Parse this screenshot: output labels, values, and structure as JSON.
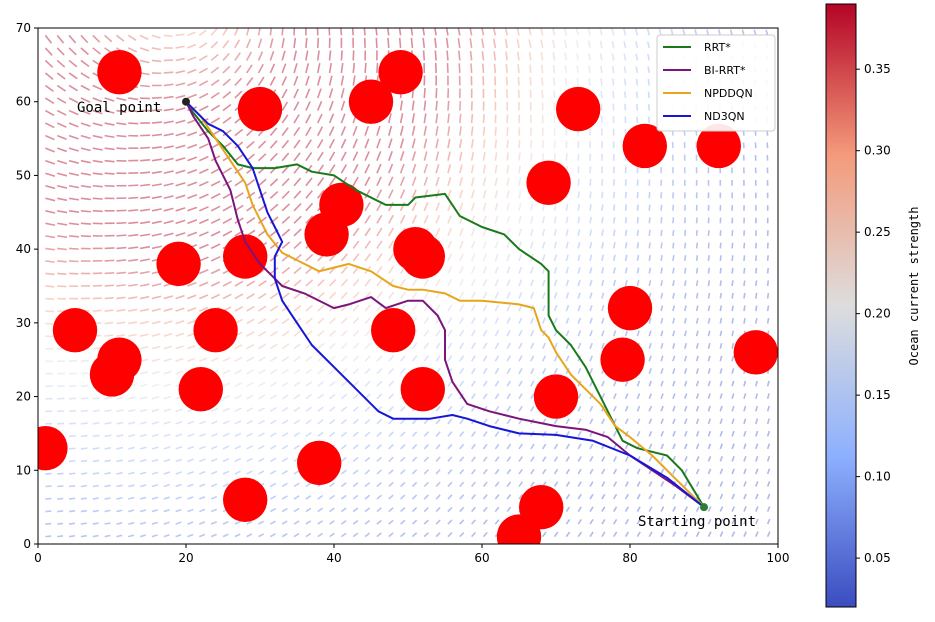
{
  "chart_data": {
    "type": "line",
    "title": "",
    "xlabel": "",
    "ylabel": "",
    "xlim": [
      0,
      100
    ],
    "ylim": [
      0,
      70
    ],
    "xticks": [
      0,
      20,
      40,
      60,
      80,
      100
    ],
    "yticks": [
      0,
      10,
      20,
      30,
      40,
      50,
      60,
      70
    ],
    "grid": false,
    "legend_position": "top-right",
    "annotations": {
      "goal": {
        "label": "Goal point",
        "x": 20,
        "y": 60
      },
      "start": {
        "label": "Starting point",
        "x": 90,
        "y": 5
      }
    },
    "obstacles": {
      "color": "#ff0000",
      "radius": 3.0,
      "centers": [
        [
          11,
          64
        ],
        [
          49,
          64
        ],
        [
          45,
          60
        ],
        [
          30,
          59
        ],
        [
          73,
          59
        ],
        [
          82,
          54
        ],
        [
          92,
          54
        ],
        [
          69,
          49
        ],
        [
          41,
          46
        ],
        [
          39,
          42
        ],
        [
          51,
          40
        ],
        [
          52,
          39
        ],
        [
          19,
          38
        ],
        [
          28,
          39
        ],
        [
          80,
          32
        ],
        [
          5,
          29
        ],
        [
          24,
          29
        ],
        [
          48,
          29
        ],
        [
          79,
          25
        ],
        [
          97,
          26
        ],
        [
          11,
          25
        ],
        [
          10,
          23
        ],
        [
          22,
          21
        ],
        [
          52,
          21
        ],
        [
          70,
          20
        ],
        [
          1,
          13
        ],
        [
          38,
          11
        ],
        [
          28,
          6
        ],
        [
          68,
          5
        ],
        [
          65,
          1
        ]
      ]
    },
    "series": [
      {
        "name": "RRT*",
        "color": "#1a7a1a",
        "points": [
          [
            20,
            60
          ],
          [
            21,
            58.5
          ],
          [
            23,
            56
          ],
          [
            25,
            54
          ],
          [
            27,
            51.5
          ],
          [
            29,
            51
          ],
          [
            32,
            51
          ],
          [
            35,
            51.5
          ],
          [
            37,
            50.5
          ],
          [
            40,
            50
          ],
          [
            43,
            48
          ],
          [
            47,
            46
          ],
          [
            50,
            46
          ],
          [
            51,
            47
          ],
          [
            55,
            47.5
          ],
          [
            57,
            44.5
          ],
          [
            60,
            43
          ],
          [
            63,
            42
          ],
          [
            65,
            40
          ],
          [
            68,
            38
          ],
          [
            69,
            37
          ],
          [
            69,
            35
          ],
          [
            69,
            33
          ],
          [
            69,
            31
          ],
          [
            70,
            29
          ],
          [
            72,
            27
          ],
          [
            74,
            24
          ],
          [
            75,
            22
          ],
          [
            76,
            20
          ],
          [
            77,
            18
          ],
          [
            78,
            16
          ],
          [
            79,
            14
          ],
          [
            81,
            13
          ],
          [
            85,
            12
          ],
          [
            87,
            10
          ],
          [
            90,
            5
          ]
        ]
      },
      {
        "name": "BI-RRT*",
        "color": "#7b157b",
        "points": [
          [
            20,
            60
          ],
          [
            21,
            58
          ],
          [
            23,
            55
          ],
          [
            24,
            52
          ],
          [
            25,
            50
          ],
          [
            26,
            48
          ],
          [
            27,
            44
          ],
          [
            28,
            41
          ],
          [
            30,
            38
          ],
          [
            32,
            36
          ],
          [
            33,
            35
          ],
          [
            36,
            34
          ],
          [
            40,
            32
          ],
          [
            42,
            32.5
          ],
          [
            45,
            33.5
          ],
          [
            47,
            32
          ],
          [
            50,
            33
          ],
          [
            52,
            33
          ],
          [
            54,
            31
          ],
          [
            55,
            29
          ],
          [
            55,
            25
          ],
          [
            56,
            22
          ],
          [
            58,
            19
          ],
          [
            61,
            18
          ],
          [
            65,
            17
          ],
          [
            70,
            16
          ],
          [
            74,
            15.5
          ],
          [
            77,
            14.5
          ],
          [
            80,
            12
          ],
          [
            83,
            10
          ],
          [
            86,
            8
          ],
          [
            90,
            5
          ]
        ]
      },
      {
        "name": "NPDDQN",
        "color": "#e8a51b",
        "points": [
          [
            20,
            60
          ],
          [
            22,
            58
          ],
          [
            24,
            55
          ],
          [
            26,
            52
          ],
          [
            28,
            49
          ],
          [
            29,
            46
          ],
          [
            31,
            42
          ],
          [
            33,
            39.5
          ],
          [
            36,
            38
          ],
          [
            38,
            37
          ],
          [
            40,
            37.5
          ],
          [
            42,
            38
          ],
          [
            45,
            37
          ],
          [
            48,
            35
          ],
          [
            50,
            34.5
          ],
          [
            52,
            34.5
          ],
          [
            55,
            34
          ],
          [
            57,
            33
          ],
          [
            60,
            33
          ],
          [
            65,
            32.5
          ],
          [
            67,
            32
          ],
          [
            68,
            29
          ],
          [
            69,
            28
          ],
          [
            70,
            26
          ],
          [
            72,
            23
          ],
          [
            74,
            21
          ],
          [
            76,
            19
          ],
          [
            78,
            16
          ],
          [
            80,
            14.5
          ],
          [
            83,
            12
          ],
          [
            86,
            9
          ],
          [
            90,
            5
          ]
        ]
      },
      {
        "name": "ND3QN",
        "color": "#1616d9",
        "points": [
          [
            20,
            60
          ],
          [
            21,
            59
          ],
          [
            23,
            57
          ],
          [
            25,
            56
          ],
          [
            27,
            54
          ],
          [
            29,
            51
          ],
          [
            30,
            48
          ],
          [
            31,
            45
          ],
          [
            32,
            43
          ],
          [
            33,
            41
          ],
          [
            32,
            39
          ],
          [
            32,
            36
          ],
          [
            33,
            33
          ],
          [
            35,
            30
          ],
          [
            37,
            27
          ],
          [
            40,
            24
          ],
          [
            43,
            21
          ],
          [
            46,
            18
          ],
          [
            48,
            17
          ],
          [
            51,
            17
          ],
          [
            53,
            17
          ],
          [
            56,
            17.5
          ],
          [
            58,
            17
          ],
          [
            61,
            16
          ],
          [
            65,
            15
          ],
          [
            70,
            14.8
          ],
          [
            75,
            14
          ],
          [
            80,
            12
          ],
          [
            85,
            9
          ],
          [
            90,
            5
          ]
        ]
      }
    ]
  },
  "colorbar": {
    "label": "Ocean current strength",
    "colormap": "coolwarm",
    "vmin": 0.02,
    "vmax": 0.39,
    "ticks": [
      0.05,
      0.1,
      0.15,
      0.2,
      0.25,
      0.3,
      0.35
    ],
    "tick_labels": [
      "0.05",
      "0.10",
      "0.15",
      "0.20",
      "0.25",
      "0.30",
      "0.35"
    ]
  }
}
